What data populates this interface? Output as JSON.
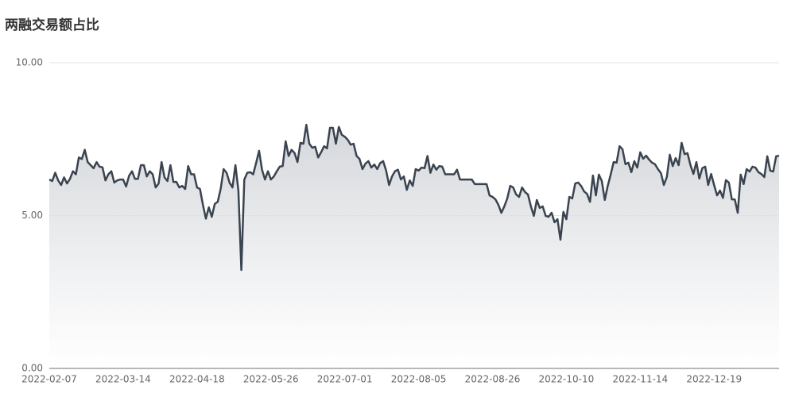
{
  "chart_data": {
    "type": "area",
    "title": "两融交易额占比",
    "categories": [
      "2022-02-07",
      null,
      null,
      null,
      null,
      null,
      null,
      null,
      null,
      null,
      null,
      null,
      null,
      null,
      null,
      null,
      null,
      null,
      null,
      null,
      null,
      null,
      null,
      null,
      null,
      "2022-03-14",
      null,
      null,
      null,
      null,
      null,
      null,
      null,
      null,
      null,
      null,
      null,
      null,
      null,
      null,
      null,
      null,
      null,
      null,
      null,
      null,
      null,
      null,
      null,
      null,
      "2022-04-18",
      null,
      null,
      null,
      null,
      null,
      null,
      null,
      null,
      null,
      null,
      null,
      null,
      null,
      null,
      null,
      null,
      null,
      null,
      null,
      null,
      null,
      null,
      null,
      null,
      "2022-05-26",
      null,
      null,
      null,
      null,
      null,
      null,
      null,
      null,
      null,
      null,
      null,
      null,
      null,
      null,
      null,
      null,
      null,
      null,
      null,
      null,
      null,
      null,
      null,
      null,
      "2022-07-01",
      null,
      null,
      null,
      null,
      null,
      null,
      null,
      null,
      null,
      null,
      null,
      null,
      null,
      null,
      null,
      null,
      null,
      null,
      null,
      null,
      null,
      null,
      null,
      null,
      "2022-08-05",
      null,
      null,
      null,
      null,
      null,
      null,
      null,
      null,
      null,
      null,
      null,
      null,
      null,
      null,
      null,
      null,
      null,
      null,
      null,
      null,
      null,
      null,
      null,
      null,
      "2022-08-26",
      null,
      null,
      null,
      null,
      null,
      null,
      null,
      null,
      null,
      null,
      null,
      null,
      null,
      null,
      null,
      null,
      null,
      null,
      null,
      null,
      null,
      null,
      null,
      null,
      "2022-10-10",
      null,
      null,
      null,
      null,
      null,
      null,
      null,
      null,
      null,
      null,
      null,
      null,
      null,
      null,
      null,
      null,
      null,
      null,
      null,
      null,
      null,
      null,
      null,
      null,
      "2022-11-14",
      null,
      null,
      null,
      null,
      null,
      null,
      null,
      null,
      null,
      null,
      null,
      null,
      null,
      null,
      null,
      null,
      null,
      null,
      null,
      null,
      null,
      null,
      null,
      null,
      "2022-12-19",
      null,
      null,
      null,
      null,
      null,
      null,
      null,
      null,
      null,
      null,
      null,
      null,
      null,
      null,
      null,
      null,
      null,
      null,
      null,
      null,
      null,
      null
    ],
    "values": [
      6.18,
      6.13,
      6.4,
      6.15,
      6.0,
      6.25,
      6.05,
      6.2,
      6.45,
      6.35,
      6.9,
      6.85,
      7.15,
      6.75,
      6.65,
      6.55,
      6.75,
      6.6,
      6.58,
      6.15,
      6.35,
      6.45,
      6.08,
      6.15,
      6.18,
      6.18,
      5.95,
      6.3,
      6.45,
      6.2,
      6.2,
      6.65,
      6.65,
      6.28,
      6.45,
      6.35,
      5.92,
      6.05,
      6.75,
      6.25,
      6.13,
      6.65,
      6.1,
      6.1,
      5.92,
      5.97,
      5.87,
      6.62,
      6.35,
      6.35,
      5.92,
      5.87,
      5.35,
      4.9,
      5.27,
      4.96,
      5.38,
      5.45,
      5.87,
      6.52,
      6.4,
      6.08,
      5.92,
      6.65,
      5.82,
      3.22,
      6.18,
      6.4,
      6.42,
      6.35,
      6.72,
      7.12,
      6.5,
      6.18,
      6.45,
      6.18,
      6.28,
      6.45,
      6.6,
      6.62,
      7.43,
      6.95,
      7.15,
      7.05,
      6.75,
      7.38,
      7.35,
      7.97,
      7.35,
      7.22,
      7.25,
      6.9,
      7.07,
      7.27,
      7.2,
      7.87,
      7.87,
      7.35,
      7.9,
      7.64,
      7.58,
      7.48,
      7.32,
      7.35,
      6.95,
      6.85,
      6.52,
      6.7,
      6.78,
      6.57,
      6.67,
      6.52,
      6.72,
      6.78,
      6.47,
      6.0,
      6.28,
      6.45,
      6.5,
      6.18,
      6.28,
      5.84,
      6.15,
      5.97,
      6.52,
      6.47,
      6.57,
      6.55,
      6.95,
      6.4,
      6.67,
      6.5,
      6.62,
      6.6,
      6.35,
      6.35,
      6.35,
      6.35,
      6.5,
      6.18,
      6.18,
      6.18,
      6.18,
      6.18,
      6.03,
      6.03,
      6.03,
      6.03,
      6.03,
      5.66,
      5.61,
      5.53,
      5.35,
      5.09,
      5.3,
      5.56,
      5.97,
      5.92,
      5.69,
      5.61,
      5.92,
      5.77,
      5.69,
      5.3,
      4.99,
      5.51,
      5.25,
      5.3,
      4.99,
      4.96,
      5.09,
      4.78,
      4.88,
      4.21,
      5.12,
      4.88,
      5.61,
      5.56,
      6.05,
      6.08,
      5.97,
      5.79,
      5.71,
      5.45,
      6.31,
      5.66,
      6.34,
      6.13,
      5.51,
      5.97,
      6.34,
      6.75,
      6.73,
      7.27,
      7.17,
      6.68,
      6.73,
      6.42,
      6.78,
      6.57,
      7.07,
      6.86,
      6.96,
      6.83,
      6.73,
      6.68,
      6.52,
      6.39,
      6.0,
      6.26,
      6.99,
      6.62,
      6.88,
      6.65,
      7.38,
      7.01,
      7.04,
      6.65,
      6.36,
      6.75,
      6.21,
      6.55,
      6.6,
      6.0,
      6.36,
      6.0,
      5.66,
      5.82,
      5.58,
      6.16,
      6.08,
      5.53,
      5.53,
      5.09,
      6.34,
      6.03,
      6.52,
      6.44,
      6.6,
      6.57,
      6.42,
      6.36,
      6.26,
      6.94,
      6.47,
      6.44,
      6.94,
      6.96
    ],
    "color": "#3a4450",
    "ylim": [
      0,
      10
    ],
    "yticks": [
      {
        "value": 0,
        "label": "0.00"
      },
      {
        "value": 5,
        "label": "5.00"
      },
      {
        "value": 10,
        "label": "10.00"
      }
    ],
    "grid": true
  }
}
